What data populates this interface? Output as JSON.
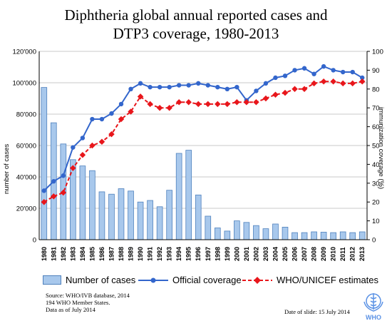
{
  "title_line1": "Diphtheria global annual reported cases and",
  "title_line2": "DTP3 coverage, 1980-2013",
  "chart_data": {
    "type": "bar+line",
    "title": "Diphtheria global annual reported cases and DTP3 coverage, 1980-2013",
    "categories": [
      "1980",
      "1981",
      "1982",
      "1983",
      "1984",
      "1985",
      "1986",
      "1987",
      "1988",
      "1989",
      "1990",
      "1991",
      "1992",
      "1993",
      "1994",
      "1995",
      "1996",
      "1997",
      "1998",
      "1999",
      "2000",
      "2001",
      "2002",
      "2003",
      "2004",
      "2005",
      "2006",
      "2007",
      "2008",
      "2009",
      "2010",
      "2011",
      "2012",
      "2013"
    ],
    "ylabel_left": "number of cases",
    "ylabel_right": "immunization coverage (%)",
    "ylim_left": [
      0,
      120000
    ],
    "ylim_right": [
      0,
      100
    ],
    "yticks_left": [
      "0",
      "20'000",
      "40'000",
      "60'000",
      "80'000",
      "100'000",
      "120'000"
    ],
    "yticks_right": [
      "0",
      "10",
      "20",
      "30",
      "40",
      "50",
      "60",
      "70",
      "80",
      "90",
      "100"
    ],
    "grid": true,
    "series": [
      {
        "name": "Number of cases",
        "axis": "left",
        "kind": "bar",
        "color": "#a8c8ec",
        "values": [
          97000,
          74500,
          61000,
          51000,
          47000,
          44000,
          30500,
          29000,
          32500,
          31000,
          24000,
          25000,
          21000,
          31500,
          55000,
          57000,
          28500,
          15000,
          7500,
          5500,
          12000,
          11000,
          9000,
          7000,
          10000,
          8000,
          4500,
          4500,
          5000,
          4800,
          4500,
          5000,
          4500,
          5000
        ]
      },
      {
        "name": "Official coverage",
        "axis": "right",
        "kind": "line",
        "color": "#3366cc",
        "values": [
          26,
          31,
          34,
          49,
          54,
          64,
          64,
          67,
          72,
          80,
          83,
          81,
          81,
          81,
          82,
          82,
          83,
          82,
          81,
          80,
          81,
          74,
          79,
          83,
          86,
          87,
          90,
          91,
          88,
          92,
          90,
          89,
          89,
          86
        ]
      },
      {
        "name": "WHO/UNICEF estimates",
        "axis": "right",
        "kind": "line",
        "color": "#e8161b",
        "values": [
          20,
          23,
          25,
          38,
          45,
          50,
          52,
          56,
          64,
          68,
          76,
          72,
          70,
          70,
          73,
          73,
          72,
          72,
          72,
          72,
          73,
          73,
          73,
          75,
          77,
          78,
          80,
          80,
          83,
          84,
          84,
          83,
          83,
          84
        ]
      }
    ]
  },
  "source_line1": "Source:  WHO/IVB database,  2014",
  "source_line2": "194 WHO Member States.",
  "source_line3": "Data as of July 2014",
  "date_of_slide": "Date of slide:  15 July 2014",
  "logo_text": "WHO"
}
